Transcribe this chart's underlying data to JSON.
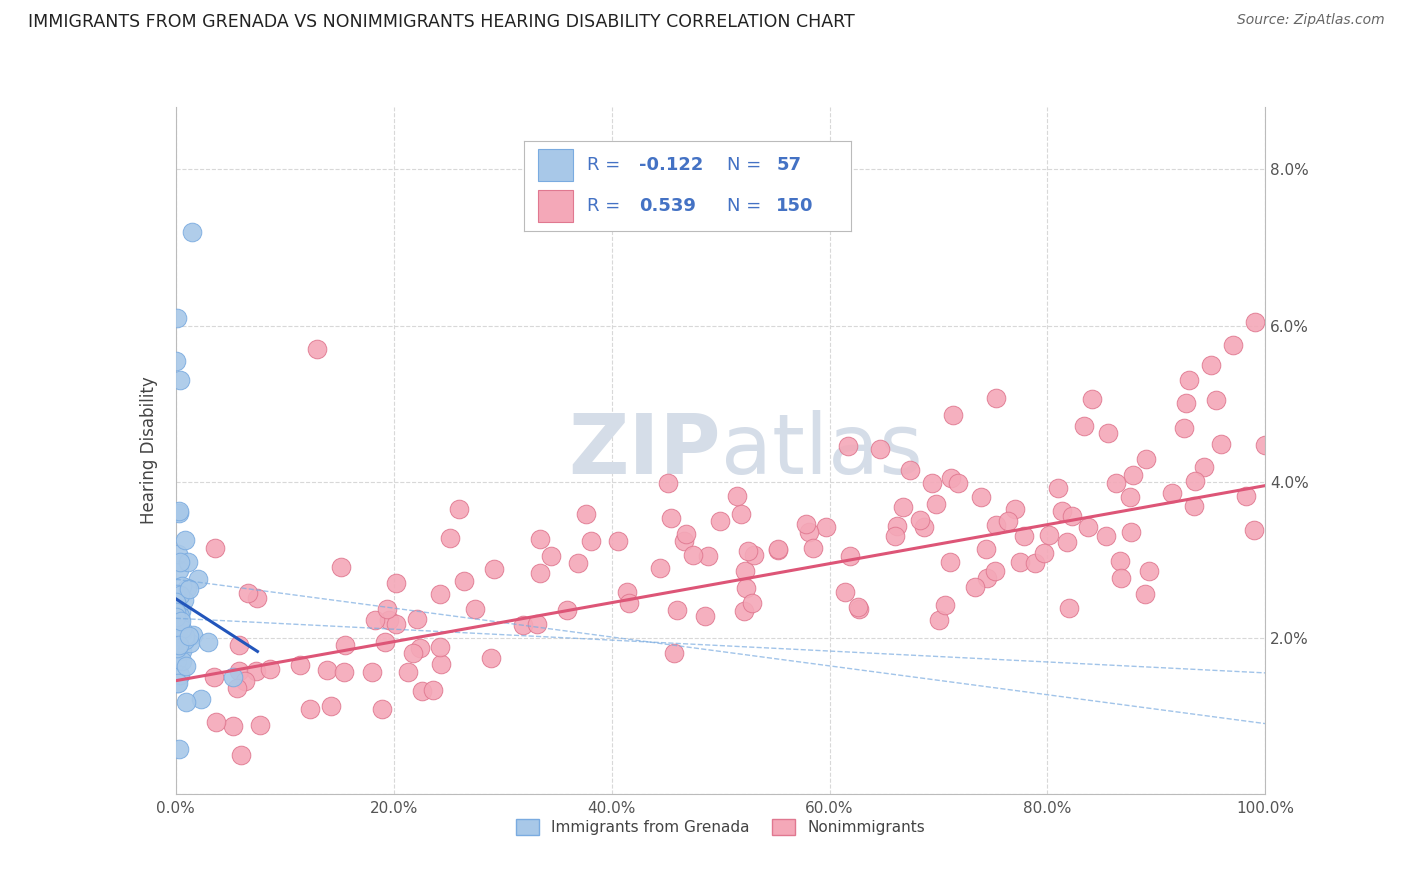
{
  "title": "IMMIGRANTS FROM GRENADA VS NONIMMIGRANTS HEARING DISABILITY CORRELATION CHART",
  "source": "Source: ZipAtlas.com",
  "ylabel": "Hearing Disability",
  "xlim": [
    0,
    100
  ],
  "ylim": [
    0,
    8.8
  ],
  "yticks": [
    0,
    2,
    4,
    6,
    8
  ],
  "ytick_labels_right": [
    "",
    "2.0%",
    "4.0%",
    "6.0%",
    "8.0%"
  ],
  "xticks": [
    0,
    20,
    40,
    60,
    80,
    100
  ],
  "xtick_labels": [
    "0.0%",
    "20.0%",
    "40.0%",
    "60.0%",
    "80.0%",
    "100.0%"
  ],
  "legend_blue_R": "-0.122",
  "legend_blue_N": "57",
  "legend_pink_R": "0.539",
  "legend_pink_N": "150",
  "legend_text_color": "#4472c4",
  "bg_color": "#ffffff",
  "grid_color": "#d8d8d8",
  "scatter_blue_face": "#a8c8e8",
  "scatter_blue_edge": "#7aabe0",
  "scatter_pink_face": "#f4a8b8",
  "scatter_pink_edge": "#e07890",
  "trend_blue": "#2255bb",
  "trend_pink": "#dd5577",
  "trend_blue_dash": "#7aabe0",
  "watermark_color": "#d5dde8"
}
